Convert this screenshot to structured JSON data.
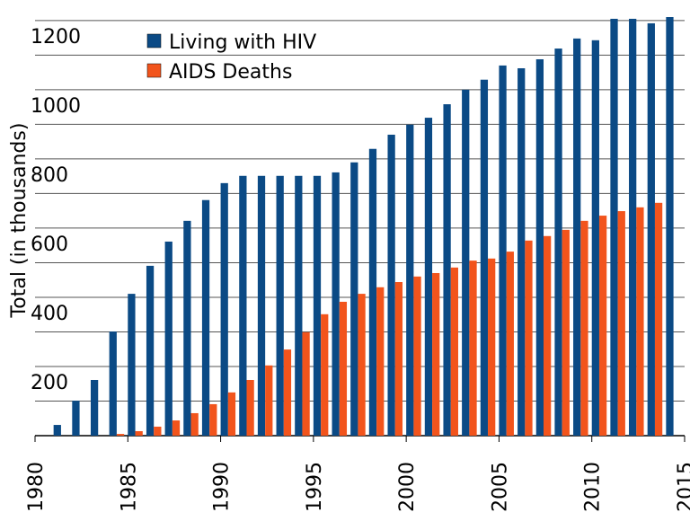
{
  "chart_data": {
    "type": "bar",
    "ylabel": "Total (in thousands)",
    "xlim": [
      1980,
      2015
    ],
    "xticks": [
      1980,
      1985,
      1990,
      1995,
      2000,
      2005,
      2010,
      2015
    ],
    "ylim": [
      0,
      1210
    ],
    "yticks": [
      200,
      400,
      600,
      800,
      1000,
      1200
    ],
    "minor_yticks": [
      100,
      300,
      500,
      700,
      900,
      1100
    ],
    "grid": true,
    "legend": "upper-left",
    "series": [
      {
        "name": "Living with HIV",
        "color": "#0b4a85",
        "x": [
          1981,
          1982,
          1983,
          1984,
          1985,
          1986,
          1987,
          1988,
          1989,
          1990,
          1991,
          1992,
          1993,
          1994,
          1995,
          1996,
          1997,
          1998,
          1999,
          2000,
          2001,
          2002,
          2003,
          2004,
          2005,
          2006,
          2007,
          2008,
          2009,
          2010,
          2011,
          2012,
          2013,
          2014
        ],
        "values": [
          31,
          101,
          161,
          301,
          410,
          491,
          561,
          621,
          681,
          730,
          751,
          751,
          751,
          751,
          751,
          761,
          790,
          829,
          870,
          899,
          919,
          958,
          1000,
          1029,
          1070,
          1062,
          1088,
          1119,
          1148,
          1143,
          1205,
          1205,
          1192,
          1210
        ]
      },
      {
        "name": "AIDS Deaths",
        "color": "#f2541c",
        "x": [
          1984,
          1985,
          1986,
          1987,
          1988,
          1989,
          1990,
          1991,
          1992,
          1993,
          1994,
          1995,
          1996,
          1997,
          1998,
          1999,
          2000,
          2001,
          2002,
          2003,
          2004,
          2005,
          2006,
          2007,
          2008,
          2009,
          2010,
          2011,
          2012,
          2013
        ],
        "values": [
          5,
          13,
          26,
          44,
          65,
          91,
          125,
          161,
          203,
          249,
          299,
          351,
          387,
          410,
          429,
          444,
          460,
          470,
          486,
          506,
          512,
          532,
          564,
          577,
          595,
          621,
          636,
          649,
          660,
          673
        ]
      }
    ]
  }
}
